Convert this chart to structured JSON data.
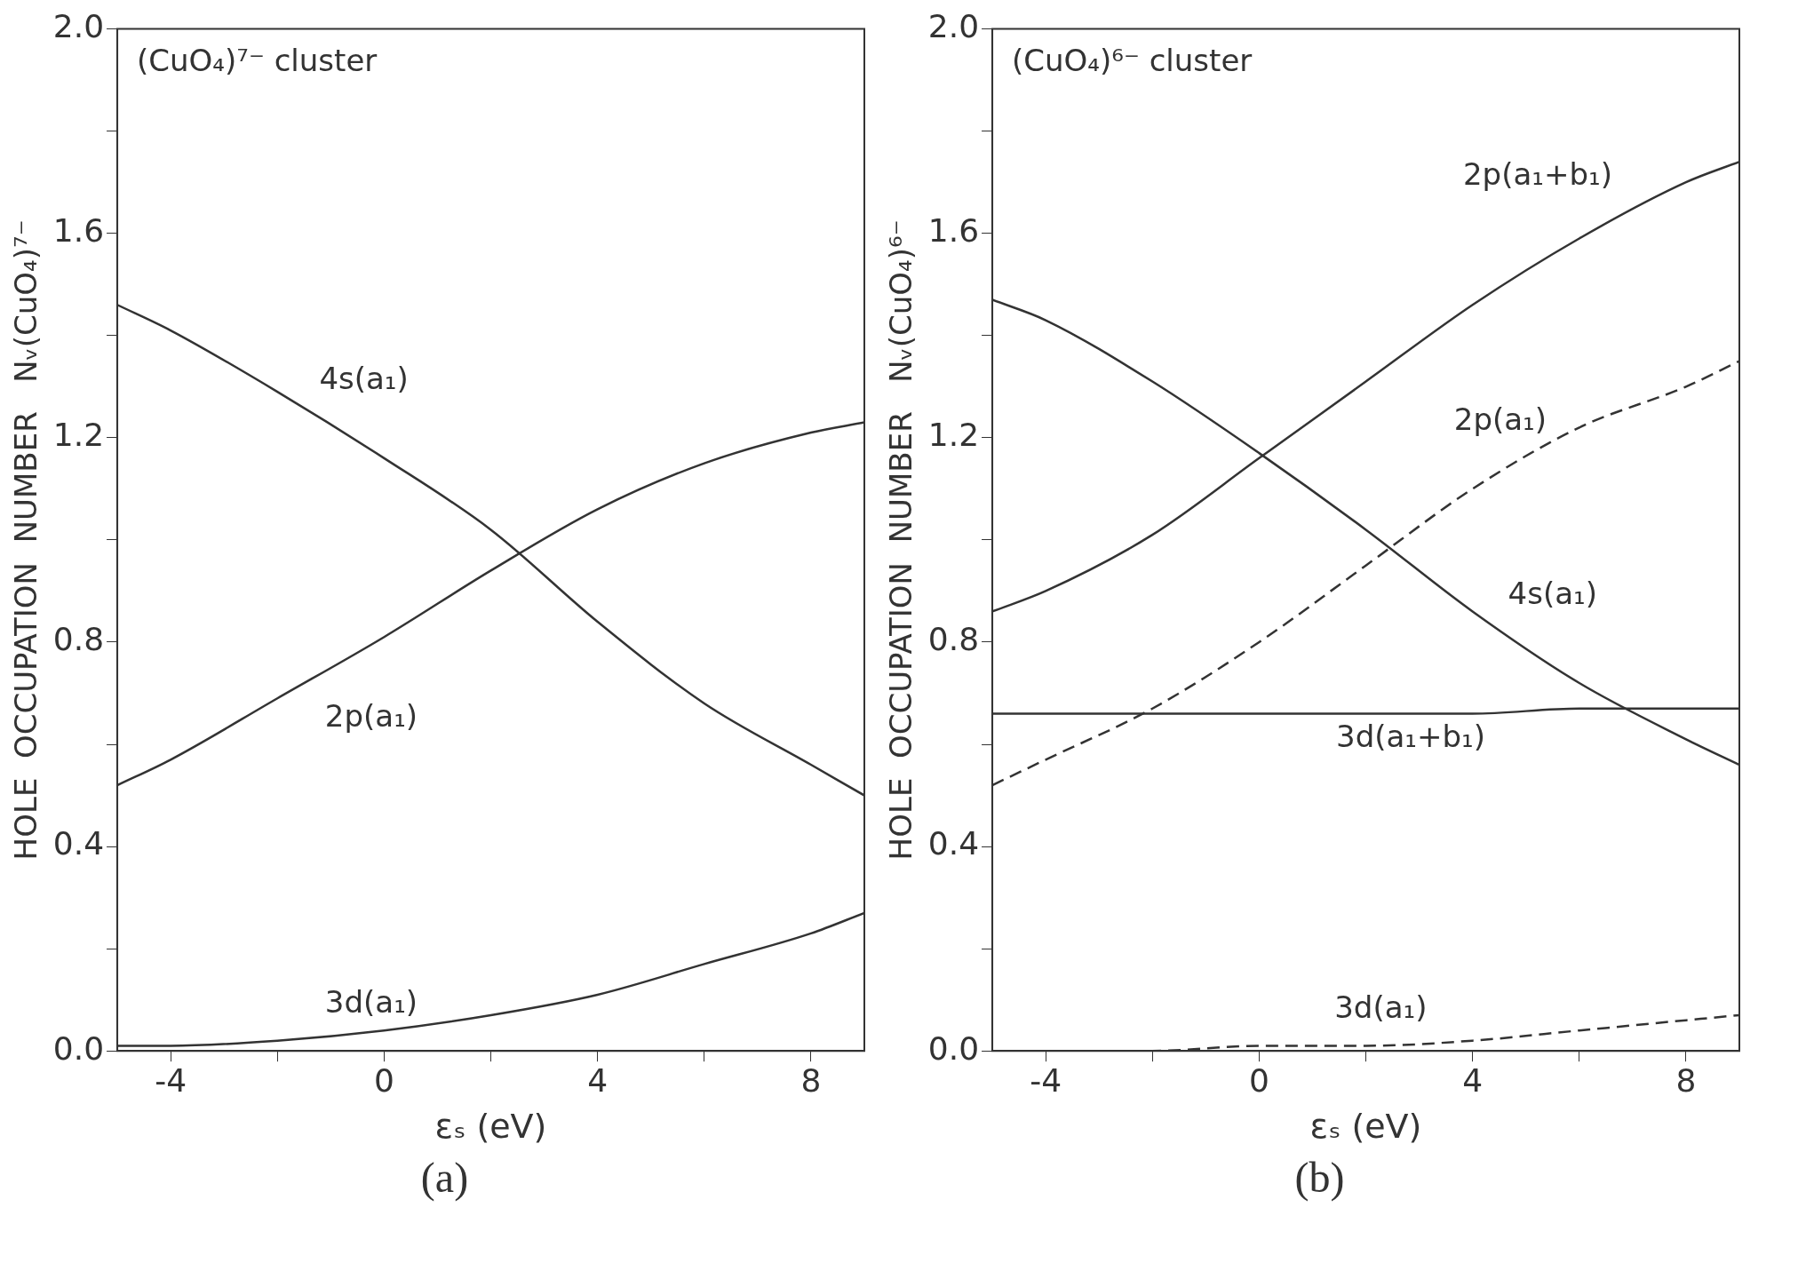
{
  "chart_data": [
    {
      "type": "line",
      "title": "(a)",
      "xlabel": "εₛ (eV)",
      "ylabel": "HOLE  OCCUPATION  NUMBER   Nᵥ(CuO₄)⁷⁻",
      "x": [
        -5,
        -4,
        -2,
        0,
        2,
        4,
        6,
        8,
        9
      ],
      "series": [
        {
          "name": "4s(a₁)",
          "color": "#333333",
          "line_style": "solid",
          "values": [
            1.46,
            1.41,
            1.29,
            1.16,
            1.02,
            0.84,
            0.68,
            0.56,
            0.5
          ]
        },
        {
          "name": "2p(a₁)",
          "color": "#333333",
          "line_style": "solid",
          "values": [
            0.52,
            0.57,
            0.69,
            0.81,
            0.94,
            1.06,
            1.15,
            1.21,
            1.23
          ]
        },
        {
          "name": "3d(a₁)",
          "color": "#333333",
          "line_style": "solid",
          "values": [
            0.01,
            0.01,
            0.02,
            0.04,
            0.07,
            0.11,
            0.17,
            0.23,
            0.27
          ]
        }
      ],
      "xlim": [
        -5,
        9
      ],
      "xticks": [
        -4,
        {
          "value": -2,
          "label": null
        },
        0,
        {
          "value": 2,
          "label": null
        },
        4,
        {
          "value": 6,
          "label": null
        },
        8
      ],
      "ylim": [
        0,
        2
      ],
      "yticks": [
        {
          "value": 0,
          "label": "0.0"
        },
        {
          "value": 0.2,
          "label": null
        },
        {
          "value": 0.4,
          "label": "0.4"
        },
        {
          "value": 0.6,
          "label": null
        },
        {
          "value": 0.8,
          "label": "0.8"
        },
        {
          "value": 1.0,
          "label": null
        },
        {
          "value": 1.2,
          "label": "1.2"
        },
        {
          "value": 1.4,
          "label": null
        },
        {
          "value": 1.6,
          "label": "1.6"
        },
        {
          "value": 1.8,
          "label": null
        },
        {
          "value": 2,
          "label": "2.0"
        }
      ],
      "grid": false,
      "legend": false,
      "annotations": [
        "(CuO₄)⁷⁻ cluster"
      ]
    },
    {
      "type": "line",
      "title": "(b)",
      "xlabel": "εₛ (eV)",
      "ylabel": "HOLE  OCCUPATION  NUMBER   Nᵥ(CuO₄)⁶⁻",
      "x": [
        -5,
        -4,
        -2,
        0,
        2,
        4,
        6,
        8,
        9
      ],
      "series": [
        {
          "name": "2p(a₁+b₁)",
          "color": "#333333",
          "line_style": "solid",
          "values": [
            0.86,
            0.9,
            1.01,
            1.16,
            1.31,
            1.46,
            1.59,
            1.7,
            1.74
          ]
        },
        {
          "name": "4s(a₁)",
          "color": "#333333",
          "line_style": "solid",
          "values": [
            1.47,
            1.43,
            1.31,
            1.17,
            1.02,
            0.86,
            0.72,
            0.61,
            0.56
          ]
        },
        {
          "name": "2p(a₁)",
          "color": "#333333",
          "line_style": "dashed",
          "values": [
            0.52,
            0.57,
            0.67,
            0.8,
            0.95,
            1.1,
            1.22,
            1.3,
            1.35
          ]
        },
        {
          "name": "3d(a₁+b₁)",
          "color": "#333333",
          "line_style": "solid",
          "values": [
            0.66,
            0.66,
            0.66,
            0.66,
            0.66,
            0.66,
            0.67,
            0.67,
            0.67
          ]
        },
        {
          "name": "3d(a₁)",
          "color": "#333333",
          "line_style": "dashed",
          "values": [
            0,
            0,
            0,
            0.01,
            0.01,
            0.02,
            0.04,
            0.06,
            0.07
          ]
        }
      ],
      "xlim": [
        -5,
        9
      ],
      "xticks": [
        -4,
        {
          "value": -2,
          "label": null
        },
        0,
        {
          "value": 2,
          "label": null
        },
        4,
        {
          "value": 6,
          "label": null
        },
        8
      ],
      "ylim": [
        0,
        2
      ],
      "yticks": [
        {
          "value": 0,
          "label": "0.0"
        },
        {
          "value": 0.2,
          "label": null
        },
        {
          "value": 0.4,
          "label": "0.4"
        },
        {
          "value": 0.6,
          "label": null
        },
        {
          "value": 0.8,
          "label": "0.8"
        },
        {
          "value": 1.0,
          "label": null
        },
        {
          "value": 1.2,
          "label": "1.2"
        },
        {
          "value": 1.4,
          "label": null
        },
        {
          "value": 1.6,
          "label": "1.6"
        },
        {
          "value": 1.8,
          "label": null
        },
        {
          "value": 2,
          "label": "2.0"
        }
      ],
      "grid": false,
      "legend": false,
      "annotations": [
        "(CuO₄)⁶⁻ cluster"
      ]
    }
  ]
}
